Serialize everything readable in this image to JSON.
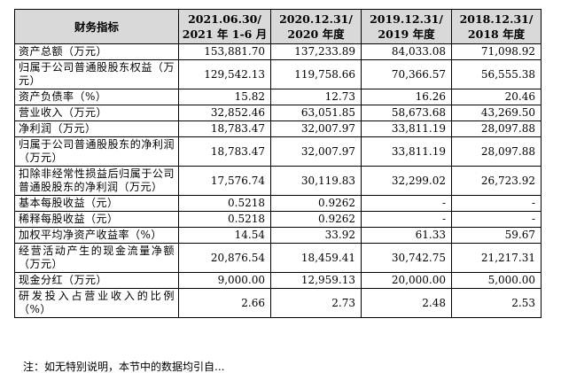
{
  "table": {
    "headers": [
      [
        "财务指标"
      ],
      [
        "2021.06.30/",
        "2021 年 1-6 月"
      ],
      [
        "2020.12.31/",
        "2020 年度"
      ],
      [
        "2019.12.31/",
        "2019 年度"
      ],
      [
        "2018.12.31/",
        "2018 年度"
      ]
    ],
    "rows": [
      {
        "label": "资产总额（万元）",
        "values": [
          "153,881.70",
          "137,233.89",
          "84,033.08",
          "71,098.92"
        ]
      },
      {
        "label": "归属于公司普通股股东权益（万元）",
        "values": [
          "129,542.13",
          "119,758.66",
          "70,366.57",
          "56,555.38"
        ]
      },
      {
        "label": "资产负债率（%）",
        "values": [
          "15.82",
          "12.73",
          "16.26",
          "20.46"
        ]
      },
      {
        "label": "营业收入（万元）",
        "values": [
          "32,852.46",
          "63,051.85",
          "58,673.68",
          "43,269.50"
        ]
      },
      {
        "label": "净利润（万元）",
        "values": [
          "18,783.47",
          "32,007.97",
          "33,811.19",
          "28,097.88"
        ]
      },
      {
        "label": "归属于公司普通股股东的净利润（万元）",
        "values": [
          "18,783.47",
          "32,007.97",
          "33,811.19",
          "28,097.88"
        ]
      },
      {
        "label": "扣除非经常性损益后归属于公司普通股股东的净利润（万元）",
        "values": [
          "17,576.74",
          "30,119.83",
          "32,299.02",
          "26,723.92"
        ]
      },
      {
        "label": "基本每股收益（元）",
        "values": [
          "0.5218",
          "0.9262",
          "-",
          "-"
        ]
      },
      {
        "label": "稀释每股收益（元）",
        "values": [
          "0.5218",
          "0.9262",
          "-",
          "-"
        ]
      },
      {
        "label": "加权平均净资产收益率（%）",
        "values": [
          "14.54",
          "33.92",
          "61.33",
          "59.67"
        ]
      },
      {
        "label": "经营活动产生的现金流量净额（万元）",
        "values": [
          "20,876.54",
          "18,459.41",
          "30,742.75",
          "21,217.31"
        ]
      },
      {
        "label": "现金分红（万元）",
        "values": [
          "9,000.00",
          "12,959.13",
          "20,000.00",
          "5,000.00"
        ]
      },
      {
        "label": "研发投入占营业收入的比例（%）",
        "values": [
          "2.66",
          "2.73",
          "2.48",
          "2.53"
        ]
      }
    ]
  },
  "footnote": "注：如无特别说明，本节中的数据均引自..."
}
